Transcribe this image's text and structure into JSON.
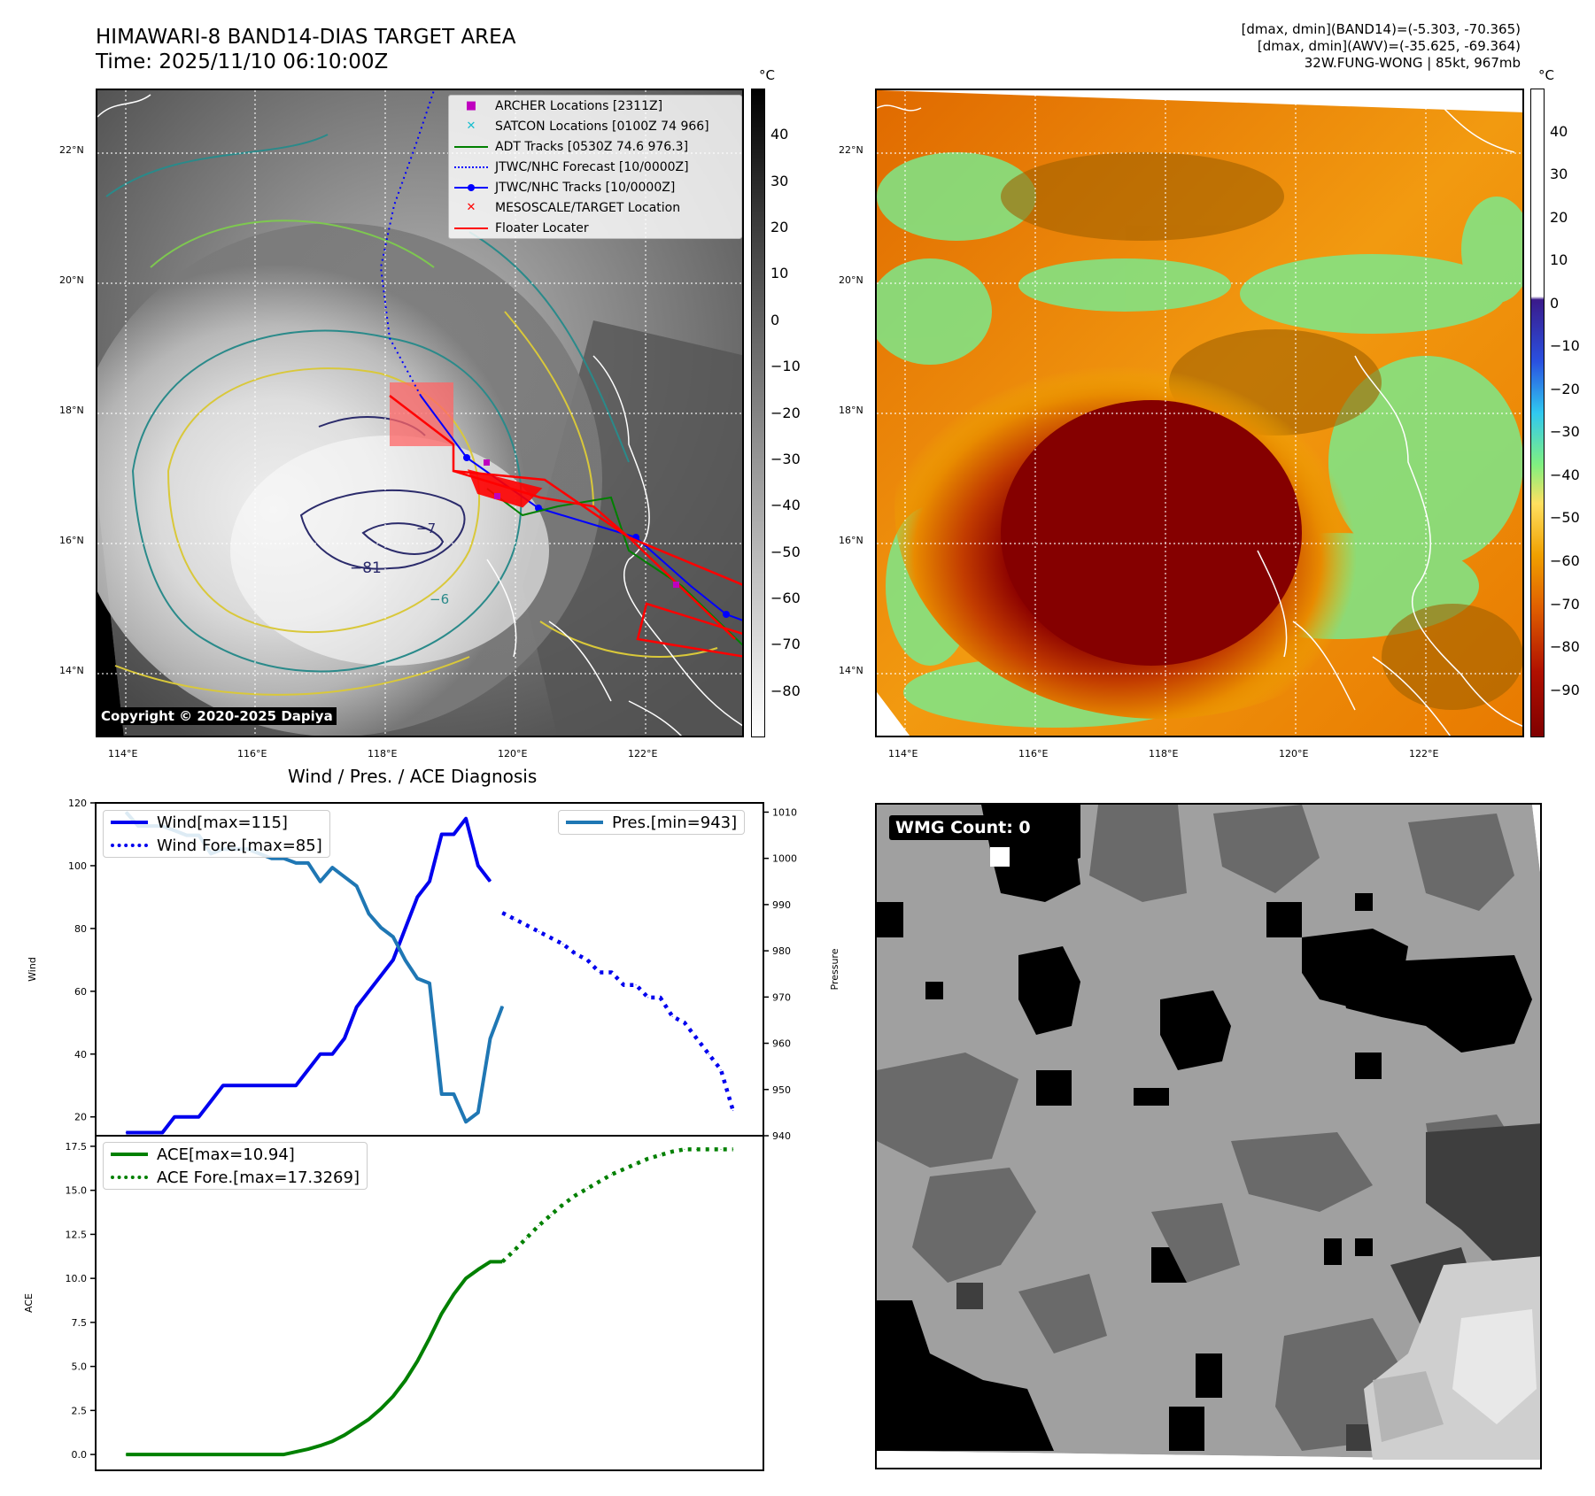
{
  "header": {
    "title_line1": "HIMAWARI-8 BAND14-DIAS TARGET AREA",
    "title_line2": "Time: 2025/11/10 06:10:00Z",
    "info_line1": "[dmax, dmin](BAND14)=(-5.303, -70.365)",
    "info_line2": "[dmax, dmin](AWV)=(-35.625, -69.364)",
    "info_line3": "32W.FUNG-WONG | 85kt, 967mb"
  },
  "map_axes": {
    "lon_ticks": [
      "114°E",
      "116°E",
      "118°E",
      "120°E",
      "122°E"
    ],
    "lat_ticks": [
      "22°N",
      "20°N",
      "18°N",
      "16°N",
      "14°N"
    ]
  },
  "ir_panel": {
    "copyright": "Copyright © 2020-2025 Dapiya",
    "colorbar_unit": "°C",
    "colorbar_ticks": [
      "40",
      "30",
      "20",
      "10",
      "0",
      "−10",
      "−20",
      "−30",
      "−40",
      "−50",
      "−60",
      "−70",
      "−80"
    ],
    "contour_labels": [
      "−7",
      "−81",
      "−6"
    ],
    "legend": [
      {
        "label": "ARCHER Locations [2311Z]",
        "symbol": "square-marker",
        "color": "#bf00bf"
      },
      {
        "label": "SATCON Locations [0100Z 74 966]",
        "symbol": "x-marker",
        "color": "#17becf"
      },
      {
        "label": "ADT Tracks [0530Z 74.6 976.3]",
        "symbol": "line",
        "color": "#008000"
      },
      {
        "label": "JTWC/NHC Forecast [10/0000Z]",
        "symbol": "dotted-line",
        "color": "#0000ff"
      },
      {
        "label": "JTWC/NHC Tracks [10/0000Z]",
        "symbol": "line-dot",
        "color": "#0000ff"
      },
      {
        "label": "MESOSCALE/TARGET Location",
        "symbol": "x-marker",
        "color": "#ff0000"
      },
      {
        "label": "Floater Locater",
        "symbol": "line",
        "color": "#ff0000"
      }
    ]
  },
  "awv_panel": {
    "colorbar_unit": "°C",
    "colorbar_ticks": [
      "40",
      "30",
      "20",
      "10",
      "0",
      "−10",
      "−20",
      "−30",
      "−40",
      "−50",
      "−60",
      "−70",
      "−80",
      "−90"
    ]
  },
  "wmg_panel": {
    "count_label": "WMG Count: 0"
  },
  "chart_data": [
    {
      "type": "line",
      "title": "Wind / Pres. / ACE Diagnosis",
      "ylabel": "Wind",
      "y2label": "Pressure",
      "ylim": [
        14,
        120
      ],
      "y2lim": [
        940,
        1012
      ],
      "xlim": [
        -2.5,
        52.5
      ],
      "yticks": [
        "120",
        "100",
        "80",
        "60",
        "40",
        "20"
      ],
      "y2ticks": [
        "1010",
        "1000",
        "990",
        "980",
        "970",
        "960",
        "950",
        "940"
      ],
      "series": [
        {
          "name": "Wind[max=115]",
          "color": "#0000ee",
          "style": "solid",
          "axis": "left",
          "x": [
            0,
            1,
            2,
            3,
            4,
            5,
            6,
            7,
            8,
            9,
            10,
            11,
            12,
            13,
            14,
            15,
            16,
            17,
            18,
            19,
            20,
            21,
            22,
            23,
            24,
            25,
            26,
            27,
            28,
            29,
            30
          ],
          "values": [
            15,
            15,
            15,
            15,
            20,
            20,
            20,
            25,
            30,
            30,
            30,
            30,
            30,
            30,
            30,
            35,
            40,
            40,
            45,
            55,
            60,
            65,
            70,
            80,
            90,
            95,
            110,
            110,
            115,
            100,
            95
          ]
        },
        {
          "name": "Wind Fore.[max=85]",
          "color": "#0000ee",
          "style": "dotted",
          "axis": "left",
          "x": [
            31,
            32,
            33,
            34,
            35,
            36,
            37,
            38,
            39,
            40,
            41,
            42,
            43,
            44,
            45,
            46,
            47,
            48,
            49,
            50
          ],
          "values": [
            85,
            83,
            81,
            79,
            77,
            75,
            72,
            70,
            66,
            66,
            62,
            62,
            58,
            58,
            52,
            50,
            45,
            40,
            35,
            22
          ]
        },
        {
          "name": "Pres.[min=943]",
          "color": "#1f77b4",
          "style": "solid",
          "axis": "right",
          "x": [
            0,
            1,
            2,
            3,
            4,
            5,
            6,
            7,
            8,
            9,
            10,
            11,
            12,
            13,
            14,
            15,
            16,
            17,
            18,
            19,
            20,
            21,
            22,
            23,
            24,
            25,
            26,
            27,
            28,
            29,
            30,
            31
          ],
          "values": [
            1010,
            1007,
            1007,
            1007,
            1006,
            1005,
            1005,
            1001,
            1002,
            1002,
            1002,
            1001,
            1000,
            1000,
            999,
            999,
            995,
            998,
            996,
            994,
            988,
            985,
            983,
            978,
            974,
            973,
            949,
            949,
            943,
            945,
            961,
            968
          ]
        }
      ]
    },
    {
      "type": "line",
      "ylabel": "ACE",
      "ylim": [
        -0.9,
        18.1
      ],
      "xlim": [
        -2.5,
        52.5
      ],
      "yticks": [
        "17.5",
        "15.0",
        "12.5",
        "10.0",
        "7.5",
        "5.0",
        "2.5",
        "0.0"
      ],
      "series": [
        {
          "name": "ACE[max=10.94]",
          "color": "#008000",
          "style": "solid",
          "x": [
            0,
            2,
            4,
            6,
            8,
            10,
            12,
            13,
            14,
            15,
            16,
            17,
            18,
            19,
            20,
            21,
            22,
            23,
            24,
            25,
            26,
            27,
            28,
            29,
            30,
            31
          ],
          "values": [
            0,
            0,
            0,
            0,
            0,
            0,
            0,
            0,
            0.15,
            0.3,
            0.5,
            0.75,
            1.1,
            1.55,
            2,
            2.6,
            3.3,
            4.2,
            5.3,
            6.6,
            8,
            9.1,
            10,
            10.5,
            10.94,
            10.94
          ]
        },
        {
          "name": "ACE Fore.[max=17.3269]",
          "color": "#008000",
          "style": "dotted",
          "x": [
            31,
            32,
            33,
            34,
            35,
            36,
            37,
            38,
            39,
            40,
            41,
            42,
            43,
            44,
            45,
            46,
            47,
            48,
            49,
            50
          ],
          "values": [
            10.94,
            11.6,
            12.3,
            13,
            13.6,
            14.2,
            14.7,
            15.1,
            15.5,
            15.9,
            16.2,
            16.5,
            16.8,
            17.0,
            17.2,
            17.3269,
            17.3269,
            17.3269,
            17.3269,
            17.3269
          ]
        }
      ]
    }
  ]
}
